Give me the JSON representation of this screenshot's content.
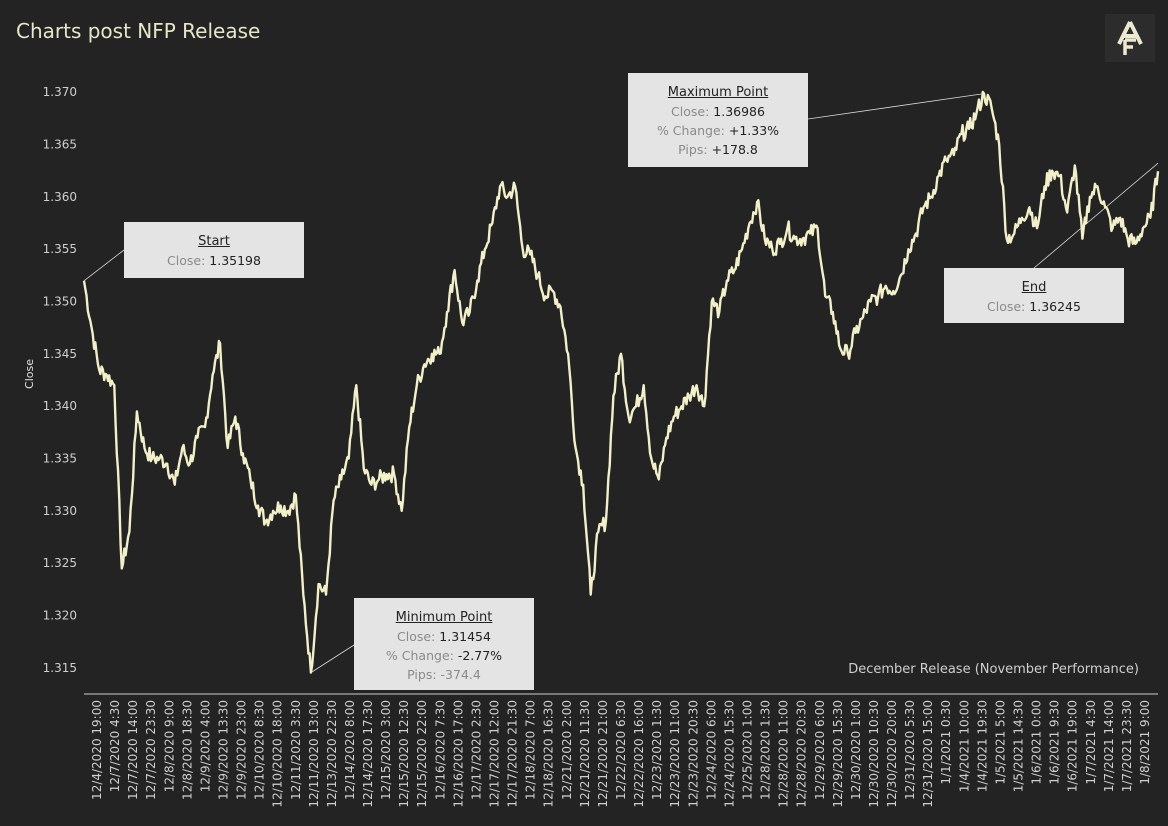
{
  "title": "Charts post NFP Release",
  "logo_icon": "af-monogram-icon",
  "chart_data": {
    "type": "line",
    "title": "Charts post NFP Release",
    "subtitle": "December Release (November Performance)",
    "ylabel": "Close",
    "xlabel": "",
    "ylim": [
      1.3125,
      1.3725
    ],
    "yticks": [
      "1.315",
      "1.320",
      "1.325",
      "1.330",
      "1.335",
      "1.340",
      "1.345",
      "1.350",
      "1.355",
      "1.360",
      "1.365",
      "1.370"
    ],
    "grid": false,
    "line_color": "#f2f0c8",
    "xtick_labels": [
      "12/4/2020 19:00",
      "12/7/2020 4:30",
      "12/7/2020 14:00",
      "12/7/2020 23:30",
      "12/8/2020 9:00",
      "12/8/2020 18:30",
      "12/9/2020 4:00",
      "12/9/2020 13:30",
      "12/9/2020 23:00",
      "12/10/2020 8:30",
      "12/10/2020 18:00",
      "12/11/2020 3:30",
      "12/11/2020 13:00",
      "12/13/2020 22:30",
      "12/14/2020 8:00",
      "12/14/2020 17:30",
      "12/15/2020 3:00",
      "12/15/2020 12:30",
      "12/15/2020 22:00",
      "12/16/2020 7:30",
      "12/16/2020 17:00",
      "12/17/2020 2:30",
      "12/17/2020 12:00",
      "12/17/2020 21:30",
      "12/18/2020 7:00",
      "12/18/2020 16:30",
      "12/21/2020 2:00",
      "12/21/2020 11:30",
      "12/21/2020 21:00",
      "12/22/2020 6:30",
      "12/22/2020 16:00",
      "12/23/2020 1:30",
      "12/23/2020 11:00",
      "12/23/2020 20:30",
      "12/24/2020 6:00",
      "12/24/2020 15:30",
      "12/25/2020 1:00",
      "12/28/2020 1:30",
      "12/28/2020 11:00",
      "12/28/2020 20:30",
      "12/29/2020 6:00",
      "12/29/2020 15:30",
      "12/30/2020 1:00",
      "12/30/2020 10:30",
      "12/30/2020 20:00",
      "12/31/2020 5:30",
      "12/31/2020 15:00",
      "1/1/2021 0:30",
      "1/4/2021 10:00",
      "1/4/2021 19:30",
      "1/5/2021 5:00",
      "1/5/2021 14:30",
      "1/6/2021 0:00",
      "1/6/2021 9:30",
      "1/6/2021 19:00",
      "1/7/2021 4:30",
      "1/7/2021 14:00",
      "1/7/2021 23:30",
      "1/8/2021 9:00"
    ],
    "series": [
      {
        "name": "",
        "key_points": [
          [
            0,
            1.35198
          ],
          [
            1,
            1.3475
          ],
          [
            2,
            1.3435
          ],
          [
            3,
            1.343
          ],
          [
            4,
            1.342
          ],
          [
            5,
            1.3245
          ],
          [
            6,
            1.328
          ],
          [
            7,
            1.3395
          ],
          [
            8,
            1.336
          ],
          [
            9,
            1.335
          ],
          [
            10,
            1.335
          ],
          [
            11,
            1.3345
          ],
          [
            12,
            1.3325
          ],
          [
            13,
            1.336
          ],
          [
            14,
            1.3345
          ],
          [
            15,
            1.337
          ],
          [
            16,
            1.338
          ],
          [
            17,
            1.343
          ],
          [
            18,
            1.346
          ],
          [
            19,
            1.336
          ],
          [
            20,
            1.339
          ],
          [
            21,
            1.3355
          ],
          [
            22,
            1.333
          ],
          [
            23,
            1.3305
          ],
          [
            24,
            1.329
          ],
          [
            25,
            1.33
          ],
          [
            26,
            1.3305
          ],
          [
            27,
            1.33
          ],
          [
            28,
            1.3315
          ],
          [
            29,
            1.322
          ],
          [
            30,
            1.31454
          ],
          [
            31,
            1.323
          ],
          [
            32,
            1.322
          ],
          [
            33,
            1.331
          ],
          [
            34,
            1.333
          ],
          [
            35,
            1.335
          ],
          [
            36,
            1.342
          ],
          [
            37,
            1.334
          ],
          [
            38,
            1.3325
          ],
          [
            39,
            1.333
          ],
          [
            40,
            1.3335
          ],
          [
            41,
            1.3335
          ],
          [
            42,
            1.33
          ],
          [
            43,
            1.338
          ],
          [
            44,
            1.342
          ],
          [
            45,
            1.344
          ],
          [
            46,
            1.345
          ],
          [
            47,
            1.345
          ],
          [
            48,
            1.349
          ],
          [
            49,
            1.353
          ],
          [
            50,
            1.348
          ],
          [
            51,
            1.349
          ],
          [
            52,
            1.352
          ],
          [
            53,
            1.355
          ],
          [
            54,
            1.3575
          ],
          [
            55,
            1.361
          ],
          [
            56,
            1.36
          ],
          [
            57,
            1.361
          ],
          [
            58,
            1.355
          ],
          [
            59,
            1.3545
          ],
          [
            60,
            1.3525
          ],
          [
            61,
            1.3505
          ],
          [
            62,
            1.351
          ],
          [
            63,
            1.3495
          ],
          [
            64,
            1.345
          ],
          [
            65,
            1.336
          ],
          [
            66,
            1.3325
          ],
          [
            67,
            1.322
          ],
          [
            68,
            1.328
          ],
          [
            69,
            1.329
          ],
          [
            70,
            1.341
          ],
          [
            71,
            1.345
          ],
          [
            72,
            1.339
          ],
          [
            73,
            1.34
          ],
          [
            74,
            1.342
          ],
          [
            75,
            1.335
          ],
          [
            76,
            1.333
          ],
          [
            77,
            1.337
          ],
          [
            78,
            1.339
          ],
          [
            79,
            1.34
          ],
          [
            80,
            1.341
          ],
          [
            81,
            1.342
          ],
          [
            82,
            1.34
          ],
          [
            83,
            1.35
          ],
          [
            84,
            1.349
          ],
          [
            85,
            1.352
          ],
          [
            86,
            1.353
          ],
          [
            87,
            1.355
          ],
          [
            88,
            1.3575
          ],
          [
            89,
            1.3595
          ],
          [
            90,
            1.356
          ],
          [
            91,
            1.355
          ],
          [
            92,
            1.3555
          ],
          [
            93,
            1.357
          ],
          [
            94,
            1.356
          ],
          [
            95,
            1.356
          ],
          [
            96,
            1.3565
          ],
          [
            97,
            1.357
          ],
          [
            98,
            1.3505
          ],
          [
            99,
            1.349
          ],
          [
            100,
            1.3455
          ],
          [
            101,
            1.345
          ],
          [
            102,
            1.347
          ],
          [
            103,
            1.3485
          ],
          [
            104,
            1.35
          ],
          [
            105,
            1.3505
          ],
          [
            106,
            1.3515
          ],
          [
            107,
            1.351
          ],
          [
            108,
            1.3525
          ],
          [
            109,
            1.355
          ],
          [
            110,
            1.3565
          ],
          [
            111,
            1.359
          ],
          [
            112,
            1.36
          ],
          [
            113,
            1.362
          ],
          [
            114,
            1.3635
          ],
          [
            115,
            1.364
          ],
          [
            116,
            1.366
          ],
          [
            117,
            1.3665
          ],
          [
            118,
            1.368
          ],
          [
            119,
            1.36986
          ],
          [
            120,
            1.3685
          ],
          [
            121,
            1.365
          ],
          [
            122,
            1.356
          ],
          [
            123,
            1.3565
          ],
          [
            124,
            1.358
          ],
          [
            125,
            1.359
          ],
          [
            126,
            1.357
          ],
          [
            127,
            1.361
          ],
          [
            128,
            1.3625
          ],
          [
            129,
            1.362
          ],
          [
            130,
            1.3585
          ],
          [
            131,
            1.363
          ],
          [
            132,
            1.356
          ],
          [
            133,
            1.36
          ],
          [
            134,
            1.361
          ],
          [
            135,
            1.359
          ],
          [
            136,
            1.357
          ],
          [
            137,
            1.358
          ],
          [
            138,
            1.356
          ],
          [
            139,
            1.3555
          ],
          [
            140,
            1.357
          ],
          [
            141,
            1.358
          ],
          [
            142,
            1.36245
          ]
        ]
      }
    ],
    "annotations": {
      "start": {
        "title": "Start",
        "close_label": "Close:",
        "close": "1.35198"
      },
      "minimum": {
        "title": "Minimum Point",
        "close_label": "Close:",
        "close": "1.31454",
        "pct_label": "% Change:",
        "pct": "-2.77%",
        "pips_label": "Pips:",
        "pips": "-374.4"
      },
      "maximum": {
        "title": "Maximum Point",
        "close_label": "Close:",
        "close": "1.36986",
        "pct_label": "% Change:",
        "pct": "+1.33%",
        "pips_label": "Pips:",
        "pips": "+178.8"
      },
      "end": {
        "title": "End",
        "close_label": "Close:",
        "close": "1.36245"
      }
    }
  }
}
